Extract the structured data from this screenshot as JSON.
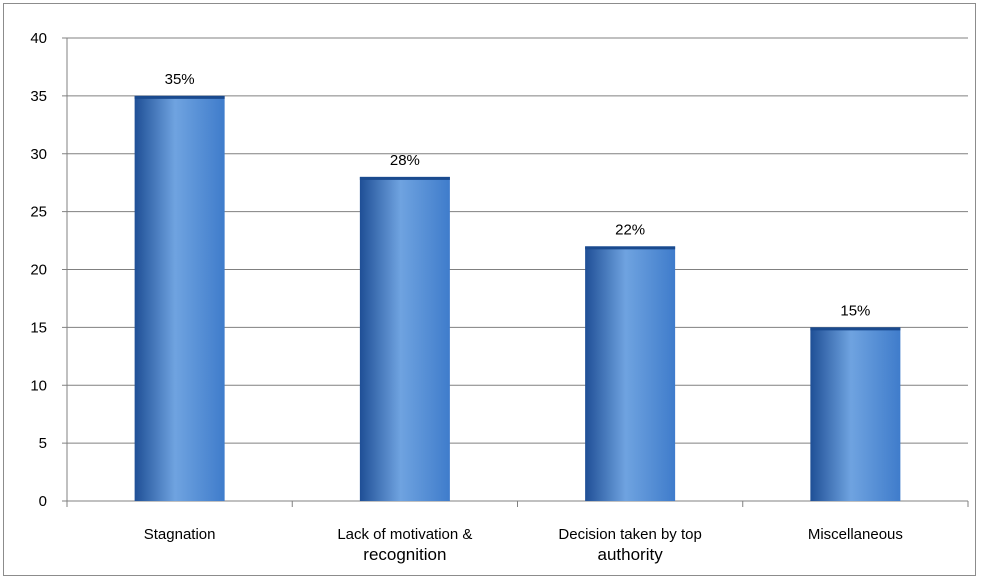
{
  "chart_data": {
    "type": "bar",
    "title": "",
    "xlabel": "",
    "ylabel": "",
    "categories": [
      [
        "Stagnation"
      ],
      [
        "Lack of motivation &",
        "recognition"
      ],
      [
        "Decision taken by top",
        "authority"
      ],
      [
        "Miscellaneous"
      ]
    ],
    "series": [
      {
        "values": [
          35,
          28,
          22,
          15
        ],
        "data_labels": [
          "35%",
          "28%",
          "22%",
          "15%"
        ]
      }
    ],
    "ylim": [
      0,
      40
    ],
    "yticks": [
      0,
      5,
      10,
      15,
      20,
      25,
      30,
      35,
      40
    ],
    "grid": true,
    "legend": "none",
    "colors": {
      "bar_light": "#6fa3e0",
      "bar_mid": "#3f7ccb",
      "bar_dark": "#1f4f96",
      "grid": "#808080",
      "axis": "#808080"
    }
  }
}
